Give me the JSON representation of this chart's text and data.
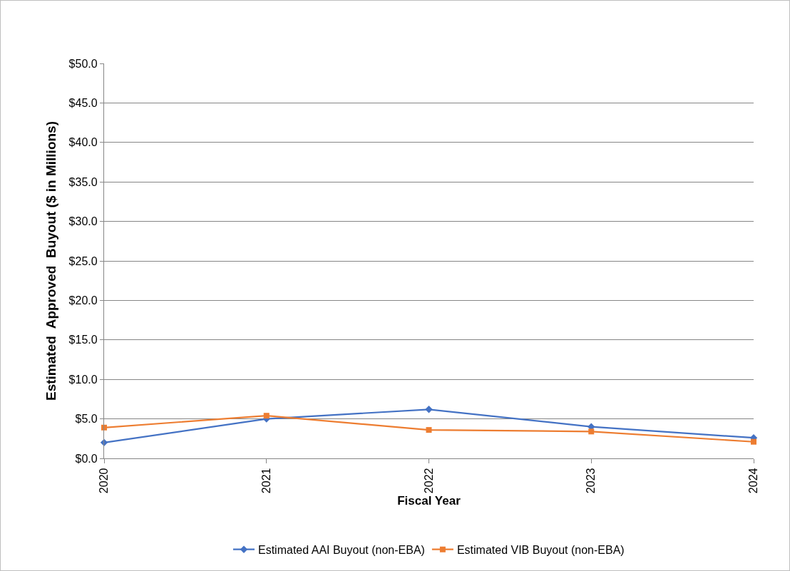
{
  "chart_data": {
    "type": "line",
    "xlabel": "Fiscal Year",
    "ylabel": "Estimated  Approved  Buyout ($ in Millions)",
    "categories": [
      "2020",
      "2021",
      "2022",
      "2023",
      "2024"
    ],
    "series": [
      {
        "name": "Estimated AAI Buyout (non-EBA)",
        "color": "#4472c4",
        "marker": "diamond",
        "values": [
          2.0,
          5.0,
          6.2,
          4.0,
          2.6
        ]
      },
      {
        "name": "Estimated VIB Buyout (non-EBA)",
        "color": "#ed7d31",
        "marker": "square",
        "values": [
          3.9,
          5.4,
          3.6,
          3.4,
          2.1
        ]
      }
    ],
    "ylim": [
      0,
      50
    ],
    "yticks": [
      {
        "value": 0,
        "label": "$0.0"
      },
      {
        "value": 5,
        "label": "$5.0"
      },
      {
        "value": 10,
        "label": "$10.0"
      },
      {
        "value": 15,
        "label": "$15.0"
      },
      {
        "value": 20,
        "label": "$20.0"
      },
      {
        "value": 25,
        "label": "$25.0"
      },
      {
        "value": 30,
        "label": "$30.0"
      },
      {
        "value": 35,
        "label": "$35.0"
      },
      {
        "value": 40,
        "label": "$40.0"
      },
      {
        "value": 45,
        "label": "$45.0"
      },
      {
        "value": 50,
        "label": "$50.0"
      }
    ],
    "grid": "y",
    "legend": "bottom",
    "line_style": "solid"
  }
}
